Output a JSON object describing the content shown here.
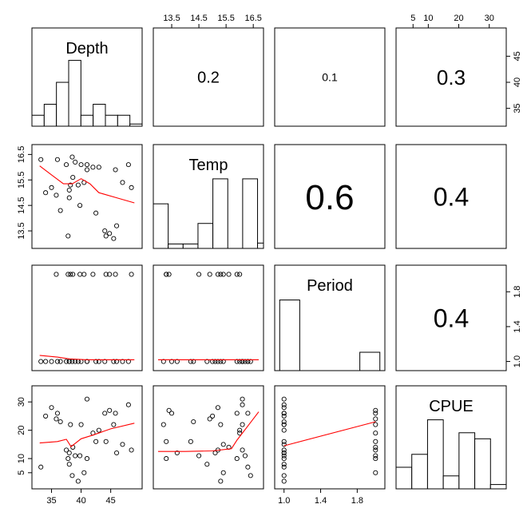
{
  "chart_data": {
    "type": "scatter-matrix",
    "variables": [
      "Depth",
      "Temp",
      "Period",
      "CPUE"
    ],
    "correlations": {
      "Depth-Temp": "0.2",
      "Depth-Period": "0.1",
      "Depth-CPUE": "0.3",
      "Temp-Period": "0.6",
      "Temp-CPUE": "0.4",
      "Period-CPUE": "0.4"
    },
    "ranges": {
      "Depth": [
        32.5,
        49.5
      ],
      "Temp": [
        13.0,
        16.7
      ],
      "Period": [
        0.95,
        2.05
      ],
      "CPUE": [
        1,
        34
      ]
    },
    "axes": {
      "top": {
        "Temp": [
          "13.5",
          "14.5",
          "15.5",
          "16.5"
        ],
        "CPUE": [
          "5",
          "10",
          "20",
          "30"
        ]
      },
      "bottom": {
        "Depth": [
          "35",
          "40",
          "45"
        ],
        "Period": [
          "1.0",
          "1.4",
          "1.8"
        ]
      },
      "left": {
        "Temp": [
          "13.5",
          "14.5",
          "15.5",
          "16.5"
        ],
        "CPUE": [
          "5",
          "10",
          "20",
          "30"
        ]
      },
      "right": {
        "Depth": [
          "35",
          "40",
          "45"
        ],
        "Period": [
          "1.0",
          "1.4",
          "1.8"
        ]
      }
    },
    "histograms": {
      "Depth": {
        "breaks": [
          32,
          34,
          36,
          38,
          40,
          42,
          44,
          46,
          48,
          50
        ],
        "counts": [
          1,
          2,
          4,
          6,
          1,
          2,
          1,
          1,
          0.2
        ]
      },
      "Temp": {
        "breaks": [
          13.0,
          13.5,
          14.0,
          14.5,
          15.0,
          15.5,
          16.0,
          16.5,
          16.7
        ],
        "counts": [
          5,
          0.5,
          0.5,
          2.8,
          7.8,
          0,
          7.8,
          0.6
        ]
      },
      "Period": {
        "breaks": [
          0.95,
          1.0,
          1.2,
          1.8,
          2.0,
          2.05
        ],
        "counts": [
          0,
          10,
          0,
          2.6,
          0
        ]
      },
      "CPUE": {
        "breaks": [
          0,
          5,
          10,
          15,
          20,
          25,
          30,
          35
        ],
        "counts": [
          2.5,
          4,
          8,
          1.5,
          6.5,
          5.8,
          0.5
        ]
      }
    },
    "points": {
      "Depth": [
        33.2,
        38.5,
        41,
        35,
        36,
        37.5,
        38,
        39,
        40,
        42.5,
        44,
        45.5,
        47,
        34,
        36.5,
        38,
        39.5,
        41,
        43,
        46,
        48,
        38.2,
        37.8,
        39.8,
        44.2,
        45.8,
        48.5,
        35.8,
        40.5,
        42,
        44.8,
        38.6
      ],
      "Temp": [
        16.3,
        16.4,
        15.9,
        15.2,
        16.3,
        16.1,
        15.1,
        16.2,
        16.1,
        14.2,
        13.5,
        13.2,
        15.4,
        15.0,
        14.3,
        14.8,
        15.3,
        16.1,
        16.0,
        13.7,
        16.1,
        15.3,
        13.3,
        14.5,
        13.3,
        15.9,
        15.2,
        14.9,
        15.4,
        16.0,
        13.4,
        15.6
      ],
      "Period": [
        1,
        1,
        1,
        1,
        1,
        1,
        1,
        1,
        1,
        1,
        1,
        1,
        1,
        1,
        1,
        1,
        1,
        1,
        1,
        1,
        1,
        2,
        2,
        2,
        2,
        2,
        2,
        2,
        2,
        2,
        2,
        2
      ],
      "CPUE": [
        7,
        4,
        10,
        28,
        26,
        13,
        12,
        11,
        22,
        16,
        26,
        22,
        15,
        25,
        23,
        8,
        2,
        31,
        20,
        12,
        29,
        22,
        10,
        11,
        16,
        26,
        13,
        24,
        5,
        19,
        27,
        14
      ]
    },
    "smooth_lines": {
      "Temp~Depth": {
        "x": [
          33,
          35,
          37,
          38.5,
          40,
          41.5,
          43,
          46,
          49
        ],
        "y": [
          16.05,
          15.7,
          15.35,
          15.35,
          15.55,
          15.35,
          15.0,
          14.8,
          14.6
        ]
      },
      "Period~Depth": {
        "x": [
          33,
          36,
          38,
          41,
          45,
          49
        ],
        "y": [
          1.07,
          1.05,
          1.03,
          1.02,
          1.02,
          1.02
        ]
      },
      "Period~Temp": {
        "x": [
          13.0,
          14.5,
          15.5,
          16.7
        ],
        "y": [
          1.02,
          1.02,
          1.02,
          1.02
        ]
      },
      "CPUE~Depth": {
        "x": [
          33,
          36,
          37.5,
          38.3,
          40,
          42,
          45,
          49
        ],
        "y": [
          15.5,
          16,
          16.8,
          14.2,
          17,
          18.3,
          20.5,
          22.5
        ]
      },
      "CPUE~Temp": {
        "x": [
          13.0,
          14.0,
          15.0,
          15.7,
          15.9,
          16.3,
          16.7
        ],
        "y": [
          12.5,
          12.5,
          12.7,
          13.5,
          16.5,
          21.5,
          26.5
        ]
      },
      "CPUE~Period": {
        "x": [
          1.0,
          2.0
        ],
        "y": [
          14.5,
          23
        ]
      }
    }
  }
}
